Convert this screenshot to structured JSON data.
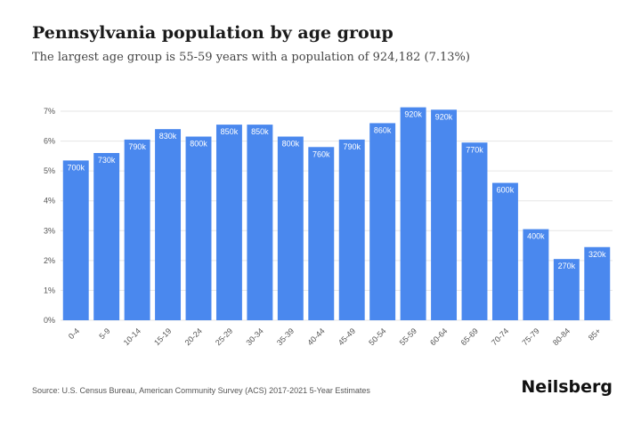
{
  "title": "Pennsylvania population by age group",
  "subtitle": "The largest age group is 55-59 years with a population of 924,182 (7.13%)",
  "source": "Source: U.S. Census Bureau, American Community Survey (ACS) 2017-2021 5-Year Estimates",
  "brand": "Neilsberg",
  "colors": {
    "bar": "#4a88ee",
    "label": "#ffffff",
    "tick": "#555555",
    "grid": "#e6e6e6"
  },
  "chart_data": {
    "type": "bar",
    "title": "Pennsylvania population by age group",
    "categories": [
      "0-4",
      "5-9",
      "10-14",
      "15-19",
      "20-24",
      "25-29",
      "30-34",
      "35-39",
      "40-44",
      "45-49",
      "50-54",
      "55-59",
      "60-64",
      "65-69",
      "70-74",
      "75-79",
      "80-84",
      "85+"
    ],
    "values": [
      5.35,
      5.6,
      6.05,
      6.4,
      6.15,
      6.55,
      6.55,
      6.15,
      5.8,
      6.05,
      6.6,
      7.13,
      7.05,
      5.95,
      4.6,
      3.05,
      2.05,
      2.45
    ],
    "data_labels": [
      "700k",
      "730k",
      "790k",
      "830k",
      "800k",
      "850k",
      "850k",
      "800k",
      "760k",
      "790k",
      "860k",
      "920k",
      "920k",
      "770k",
      "600k",
      "400k",
      "270k",
      "320k"
    ],
    "y_ticks": [
      "0%",
      "1%",
      "2%",
      "3%",
      "4%",
      "5%",
      "6%",
      "7%"
    ],
    "ylim": [
      0,
      7
    ],
    "xlabel": "",
    "ylabel": "",
    "grid": true
  }
}
